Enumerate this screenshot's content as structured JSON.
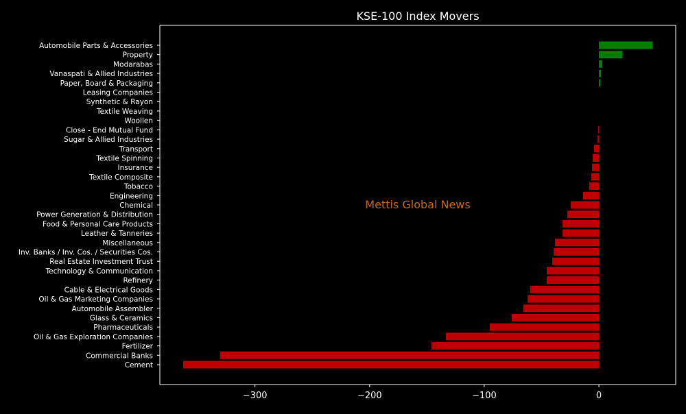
{
  "chart_data": {
    "type": "bar",
    "orientation": "horizontal",
    "title": "KSE-100 Index Movers",
    "xlabel": "",
    "ylabel": "",
    "watermark": "Mettis Global News",
    "xlim": [
      -383,
      67
    ],
    "xticks": [
      -300,
      -200,
      -100,
      0
    ],
    "xtick_labels": [
      "−300",
      "−200",
      "−100",
      "0"
    ],
    "grid": false,
    "colors": {
      "positive": "#008000",
      "negative": "#c00000",
      "background": "#000000",
      "text": "#ffffff",
      "watermark": "#c8680a"
    },
    "categories": [
      "Automobile Parts & Accessories",
      "Property",
      "Modarabas",
      "Vanaspati & Allied Industries",
      "Paper, Board & Packaging",
      "Leasing Companies",
      "Synthetic & Rayon",
      "Textile Weaving",
      "Woollen",
      "Close - End Mutual Fund",
      "Sugar & Allied Industries",
      "Transport",
      "Textile Spinning",
      "Insurance",
      "Textile Composite",
      "Tobacco",
      "Engineering",
      "Chemical",
      "Power Generation & Distribution",
      "Food & Personal Care Products",
      "Leather & Tanneries",
      "Miscellaneous",
      "Inv. Banks / Inv. Cos. / Securities Cos.",
      "Real Estate Investment Trust",
      "Technology & Communication",
      "Refinery",
      "Cable & Electrical Goods",
      "Oil & Gas Marketing Companies",
      "Automobile Assembler",
      "Glass & Ceramics",
      "Pharmaceuticals",
      "Oil & Gas Exploration Companies",
      "Fertilizer",
      "Commercial Banks",
      "Cement"
    ],
    "values": [
      46.7,
      20.4,
      3.0,
      1.8,
      1.2,
      0,
      0,
      0,
      0,
      -0.6,
      -1.2,
      -4.2,
      -5.4,
      -6.0,
      -6.6,
      -8.4,
      -13.8,
      -24.6,
      -27.5,
      -31.7,
      -31.7,
      -38.3,
      -39.5,
      -40.7,
      -45.5,
      -45.6,
      -60.0,
      -62.2,
      -66.0,
      -76.1,
      -95.2,
      -133.5,
      -146.1,
      -330.5,
      -362.7
    ]
  }
}
